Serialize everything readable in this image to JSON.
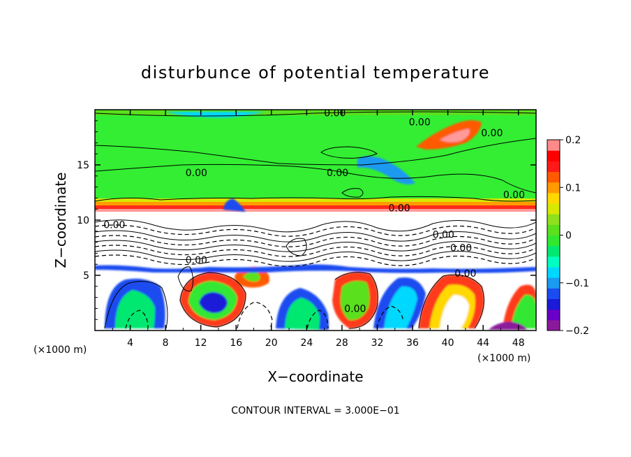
{
  "chart_data": {
    "type": "heatmap",
    "title": "disturbunce of potential temperature",
    "xlabel": "X−coordinate",
    "ylabel": "Z−coordinate",
    "x_unit_left": "(×1000 m)",
    "x_unit_right": "(×1000 m)",
    "footer": "CONTOUR INTERVAL = 3.000E−01",
    "xlim": [
      0,
      50
    ],
    "ylim": [
      0,
      20
    ],
    "x_ticks": [
      4,
      8,
      12,
      16,
      20,
      24,
      28,
      32,
      36,
      40,
      44,
      48
    ],
    "y_ticks": [
      5,
      10,
      15
    ],
    "colorbar": {
      "range": [
        -0.2,
        0.2
      ],
      "ticks": [
        "0.2",
        "0.1",
        "0",
        "−0.1",
        "−0.2"
      ],
      "tick_values": [
        0.2,
        0.1,
        0,
        -0.1,
        -0.2
      ],
      "colors": [
        "#8b1a9b",
        "#6a00c8",
        "#1a1ad8",
        "#1a4cf0",
        "#1a9af0",
        "#00d8ff",
        "#00ffc0",
        "#00e870",
        "#30e830",
        "#5ae01e",
        "#90e01e",
        "#d8e800",
        "#ffd800",
        "#ff9a00",
        "#ff5a00",
        "#ff1a1a",
        "#ff0000",
        "#ff8a8a"
      ]
    },
    "contour_labels": [
      {
        "text": "0.00",
        "x": 27.2,
        "z": 19.7
      },
      {
        "text": "0.00",
        "x": 36.8,
        "z": 18.9
      },
      {
        "text": "0.00",
        "x": 45.0,
        "z": 17.9
      },
      {
        "text": "0.00",
        "x": 11.5,
        "z": 14.3
      },
      {
        "text": "0.00",
        "x": 27.5,
        "z": 14.3
      },
      {
        "text": "0.00",
        "x": 47.5,
        "z": 12.3
      },
      {
        "text": "0.00",
        "x": 34.5,
        "z": 11.1
      },
      {
        "text": "0.00",
        "x": 2.2,
        "z": 9.6
      },
      {
        "text": "0.00",
        "x": 39.5,
        "z": 8.7
      },
      {
        "text": "0.00",
        "x": 41.5,
        "z": 7.5
      },
      {
        "text": "0.00",
        "x": 11.5,
        "z": 6.4
      },
      {
        "text": "0.00",
        "x": 42.0,
        "z": 5.2
      },
      {
        "text": "0.00",
        "x": 29.5,
        "z": 2.0
      }
    ]
  }
}
